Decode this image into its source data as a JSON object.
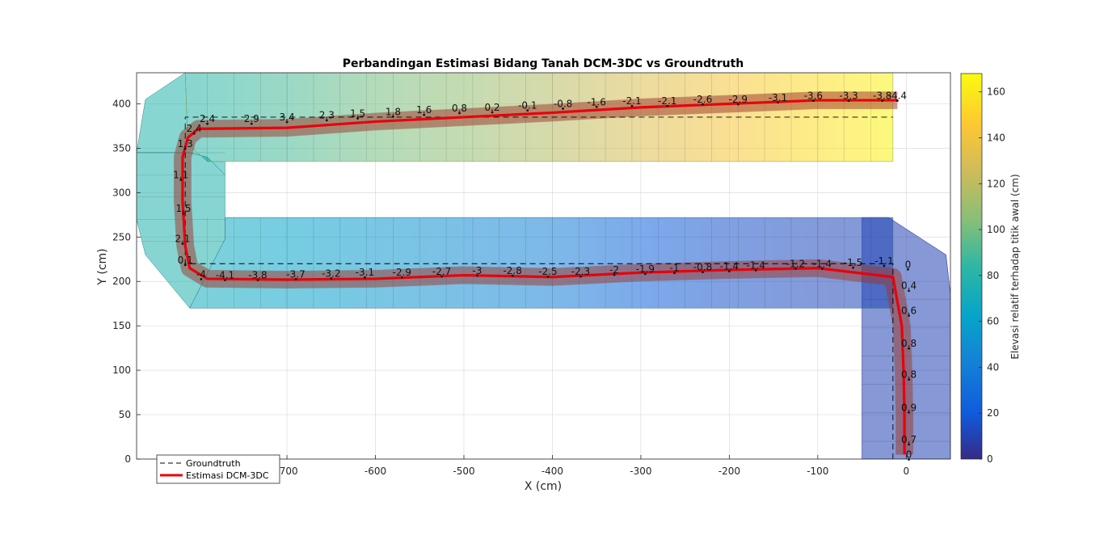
{
  "chart_data": {
    "type": "surface-path",
    "title": "Perbandingan Estimasi Bidang Tanah DCM-3DC vs Groundtruth",
    "xlabel": "X (cm)",
    "ylabel": "Y (cm)",
    "xlim": [
      -870,
      50
    ],
    "ylim": [
      0,
      435
    ],
    "xticks": [
      -700,
      -600,
      -500,
      -400,
      -300,
      -200,
      -100,
      0
    ],
    "yticks": [
      0,
      50,
      100,
      150,
      200,
      250,
      300,
      350,
      400
    ],
    "grid": true,
    "colorbar": {
      "label": "Elevasi relatif terhadap titik awal (cm)",
      "range": [
        0,
        168
      ],
      "ticks": [
        0,
        20,
        40,
        60,
        80,
        100,
        120,
        140,
        160
      ],
      "colormap": "parula"
    },
    "legend": {
      "location": "bottom-left",
      "entries": [
        {
          "label": "Groundtruth",
          "style": "dashed",
          "color": "#000000"
        },
        {
          "label": "Estimasi DCM-3DC",
          "style": "solid",
          "color": "#e8000b"
        }
      ]
    },
    "groundtruth": {
      "x": [
        -15,
        -15,
        -15,
        -815,
        -815,
        -815,
        -15
      ],
      "y": [
        0,
        220,
        220,
        220,
        220,
        385,
        385
      ]
    },
    "estimate": {
      "x": [
        -2,
        -2,
        -3,
        -5,
        -15,
        -100,
        -200,
        -300,
        -400,
        -500,
        -600,
        -700,
        -790,
        -810,
        -815,
        -818,
        -818,
        -812,
        -800,
        -790,
        -700,
        -600,
        -500,
        -400,
        -300,
        -200,
        -100,
        -10
      ],
      "y": [
        5,
        50,
        100,
        150,
        205,
        215,
        213,
        210,
        205,
        207,
        203,
        202,
        203,
        215,
        240,
        290,
        340,
        362,
        372,
        372,
        373,
        380,
        385,
        390,
        396,
        400,
        404,
        404
      ]
    },
    "terrain_colors": [
      {
        "x": 0,
        "c": 10
      },
      {
        "x": -100,
        "c": 12
      },
      {
        "x": -200,
        "c": 16
      },
      {
        "x": -300,
        "c": 25
      },
      {
        "x": -400,
        "c": 40
      },
      {
        "x": -500,
        "c": 48
      },
      {
        "x": -600,
        "c": 55
      },
      {
        "x": -700,
        "c": 62
      },
      {
        "x": -800,
        "c": 70
      },
      {
        "x": -870,
        "c": 75
      }
    ],
    "terrain_colors_top": [
      {
        "x": -870,
        "c": 75
      },
      {
        "x": -800,
        "c": 82
      },
      {
        "x": -700,
        "c": 90
      },
      {
        "x": -600,
        "c": 100
      },
      {
        "x": -500,
        "c": 108
      },
      {
        "x": -400,
        "c": 118
      },
      {
        "x": -300,
        "c": 130
      },
      {
        "x": -200,
        "c": 142
      },
      {
        "x": -100,
        "c": 155
      },
      {
        "x": -15,
        "c": 165
      }
    ],
    "point_labels": [
      {
        "x": 3,
        "y": 5,
        "text": "0"
      },
      {
        "x": 3,
        "y": 22,
        "text": "0.7"
      },
      {
        "x": 3,
        "y": 58,
        "text": "0.9"
      },
      {
        "x": 3,
        "y": 95,
        "text": "0.8"
      },
      {
        "x": 3,
        "y": 130,
        "text": "0.8"
      },
      {
        "x": 3,
        "y": 167,
        "text": "0.6"
      },
      {
        "x": 3,
        "y": 195,
        "text": "0.4"
      },
      {
        "x": 2,
        "y": 219,
        "text": "0"
      },
      {
        "x": -25,
        "y": 223,
        "text": "-1.1"
      },
      {
        "x": -60,
        "y": 221,
        "text": "-1.5"
      },
      {
        "x": -95,
        "y": 220,
        "text": "-1.4"
      },
      {
        "x": -125,
        "y": 220,
        "text": "-1.2"
      },
      {
        "x": -170,
        "y": 218,
        "text": "-1.4"
      },
      {
        "x": -200,
        "y": 217,
        "text": "-1.4"
      },
      {
        "x": -230,
        "y": 216,
        "text": "-0.8"
      },
      {
        "x": -262,
        "y": 215,
        "text": "-1"
      },
      {
        "x": -295,
        "y": 214,
        "text": "-1.9"
      },
      {
        "x": -330,
        "y": 213,
        "text": "-2"
      },
      {
        "x": -368,
        "y": 211,
        "text": "-2.3"
      },
      {
        "x": -405,
        "y": 211,
        "text": "-2.5"
      },
      {
        "x": -445,
        "y": 212,
        "text": "-2.8"
      },
      {
        "x": -485,
        "y": 212,
        "text": "-3"
      },
      {
        "x": -525,
        "y": 211,
        "text": "-2.7"
      },
      {
        "x": -570,
        "y": 210,
        "text": "-2.9"
      },
      {
        "x": -612,
        "y": 210,
        "text": "-3.1"
      },
      {
        "x": -650,
        "y": 209,
        "text": "-3.2"
      },
      {
        "x": -690,
        "y": 208,
        "text": "-3.7"
      },
      {
        "x": -733,
        "y": 207,
        "text": "-3.8"
      },
      {
        "x": -770,
        "y": 207,
        "text": "-4.1"
      },
      {
        "x": -797,
        "y": 208,
        "text": "-4"
      },
      {
        "x": -815,
        "y": 224,
        "text": "0.1"
      },
      {
        "x": -818,
        "y": 248,
        "text": "2.1"
      },
      {
        "x": -817,
        "y": 282,
        "text": "1.5"
      },
      {
        "x": -820,
        "y": 320,
        "text": "1.1"
      },
      {
        "x": -815,
        "y": 355,
        "text": "1.3"
      },
      {
        "x": -805,
        "y": 372,
        "text": "2.4"
      },
      {
        "x": -790,
        "y": 383,
        "text": "2.4"
      },
      {
        "x": -740,
        "y": 383,
        "text": "2.9"
      },
      {
        "x": -700,
        "y": 385,
        "text": "3.4"
      },
      {
        "x": -655,
        "y": 387,
        "text": "2.3"
      },
      {
        "x": -620,
        "y": 389,
        "text": "1.5"
      },
      {
        "x": -580,
        "y": 391,
        "text": "1.8"
      },
      {
        "x": -545,
        "y": 393,
        "text": "1.6"
      },
      {
        "x": -505,
        "y": 395,
        "text": "0.8"
      },
      {
        "x": -468,
        "y": 396,
        "text": "0.2"
      },
      {
        "x": -428,
        "y": 398,
        "text": "-0.1"
      },
      {
        "x": -388,
        "y": 400,
        "text": "-0.8"
      },
      {
        "x": -350,
        "y": 402,
        "text": "-1.6"
      },
      {
        "x": -310,
        "y": 403,
        "text": "-2.1"
      },
      {
        "x": -270,
        "y": 403,
        "text": "-2.1"
      },
      {
        "x": -230,
        "y": 405,
        "text": "-2.6"
      },
      {
        "x": -190,
        "y": 405,
        "text": "-2.9"
      },
      {
        "x": -145,
        "y": 407,
        "text": "-3.1"
      },
      {
        "x": -105,
        "y": 409,
        "text": "-3.6"
      },
      {
        "x": -65,
        "y": 409,
        "text": "-3.3"
      },
      {
        "x": -27,
        "y": 409,
        "text": "-3.8"
      },
      {
        "x": -10,
        "y": 409,
        "text": "-4.4"
      }
    ]
  }
}
